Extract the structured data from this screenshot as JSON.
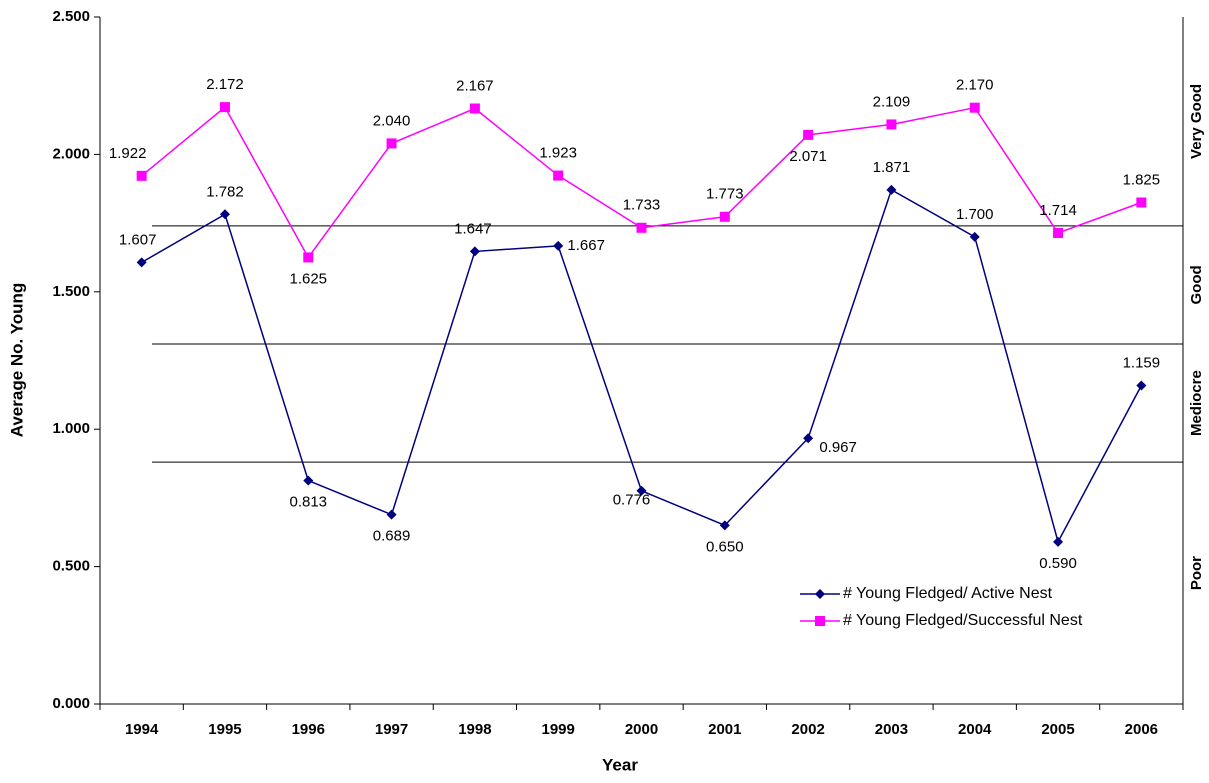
{
  "chart_data": {
    "type": "line",
    "x_label": "Year",
    "y_label": "Average No. Young",
    "categories": [
      "1994",
      "1995",
      "1996",
      "1997",
      "1998",
      "1999",
      "2000",
      "2001",
      "2002",
      "2003",
      "2004",
      "2005",
      "2006"
    ],
    "series": [
      {
        "name": "# Young Fledged/ Active Nest",
        "color": "#000080",
        "marker": "diamond",
        "values": [
          1.607,
          1.782,
          0.813,
          0.689,
          1.647,
          1.667,
          0.776,
          0.65,
          0.967,
          1.871,
          1.7,
          0.59,
          1.159
        ],
        "value_labels": [
          "1.607",
          "1.782",
          "0.813",
          "0.689",
          "1.647",
          "1.667",
          "0.776",
          "0.650",
          "0.967",
          "1.871",
          "1.700",
          "0.590",
          "1.159"
        ]
      },
      {
        "name": "# Young Fledged/Successful Nest",
        "color": "#ff00ff",
        "marker": "square",
        "values": [
          1.922,
          2.172,
          1.625,
          2.04,
          2.167,
          1.923,
          1.733,
          1.773,
          2.071,
          2.109,
          2.17,
          1.714,
          1.825
        ],
        "value_labels": [
          "1.922",
          "2.172",
          "1.625",
          "2.040",
          "2.167",
          "1.923",
          "1.733",
          "1.773",
          "2.071",
          "2.109",
          "2.170",
          "1.714",
          "1.825"
        ]
      }
    ],
    "ylim": [
      0,
      2.5
    ],
    "yticks": [
      {
        "value": 0,
        "label": "0.000"
      },
      {
        "value": 0.5,
        "label": "0.500"
      },
      {
        "value": 1,
        "label": "1.000"
      },
      {
        "value": 1.5,
        "label": "1.500"
      },
      {
        "value": 2,
        "label": "2.000"
      },
      {
        "value": 2.5,
        "label": "2.500"
      }
    ],
    "reference_lines": [
      0.88,
      1.31,
      1.74
    ],
    "band_labels": [
      "Poor",
      "Mediocre",
      "Good",
      "Very Good"
    ],
    "legend": "lower right",
    "grid": false
  }
}
